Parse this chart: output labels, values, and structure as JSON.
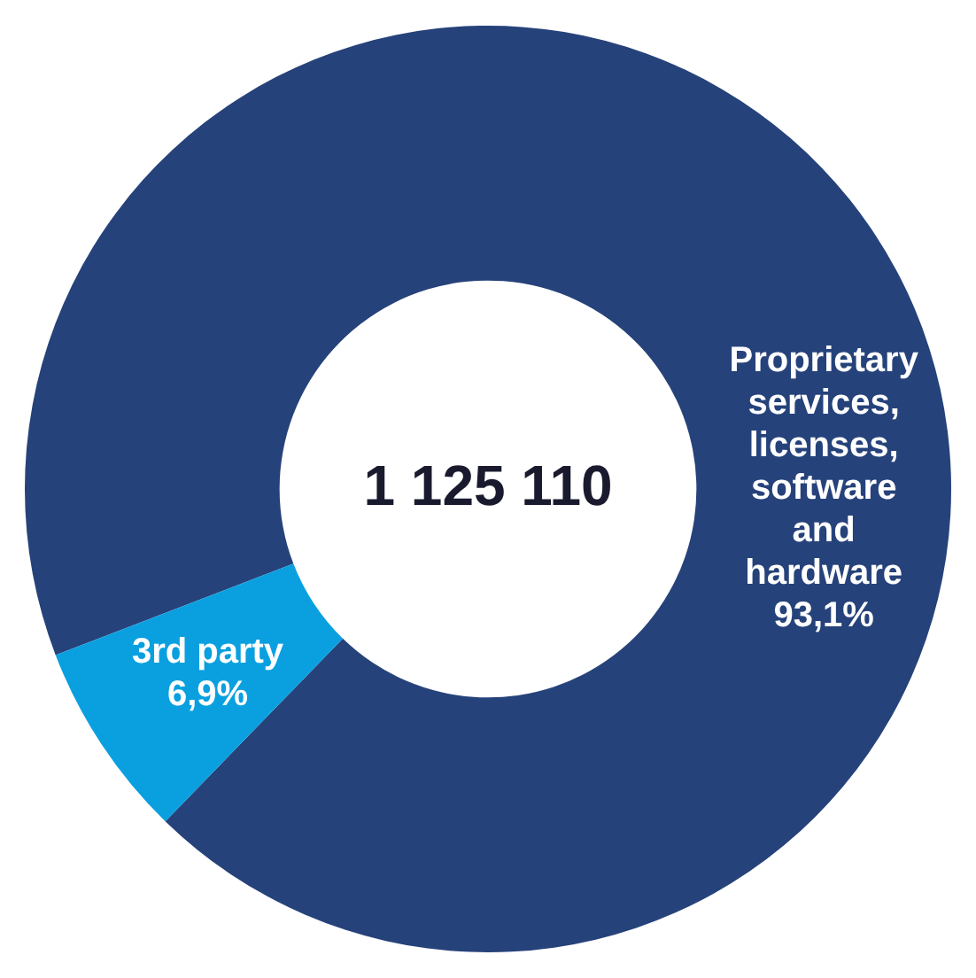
{
  "chart_data": {
    "type": "donut",
    "categories": [
      "Proprietary services, licenses, software and hardware",
      "3rd party"
    ],
    "values": [
      93.1,
      6.9
    ],
    "value_labels": [
      "93,1%",
      "6,9%"
    ],
    "colors": [
      "#26427a",
      "#0aa0e0"
    ],
    "annotations": [
      "1 125 110"
    ],
    "legend": false
  }
}
